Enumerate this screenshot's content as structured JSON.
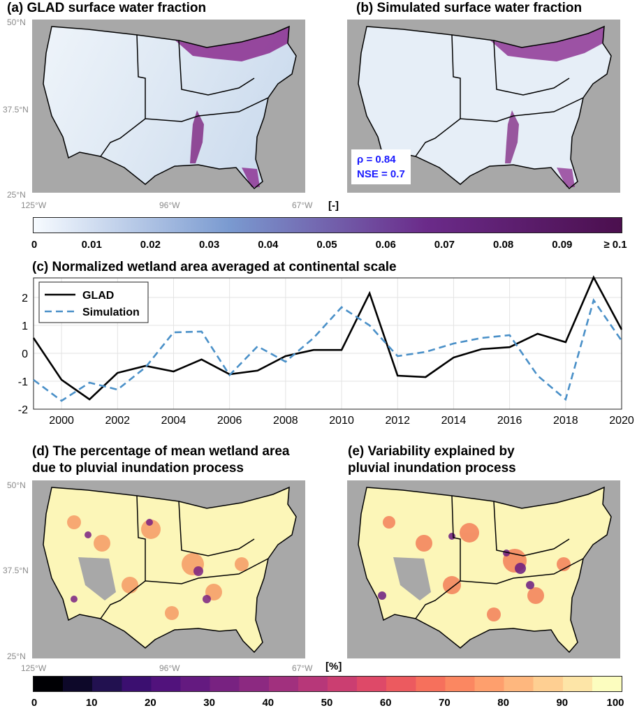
{
  "panels": {
    "a_title": "(a) GLAD surface water fraction",
    "b_title": "(b) Simulated surface water fraction",
    "c_title": "(c) Normalized wetland area averaged at continental scale",
    "d_title_line1": "(d) The percentage of mean wetland area",
    "d_title_line2": "due to pluvial inundation process",
    "e_title_line1": "(e) Variability explained by",
    "e_title_line2": "pluvial inundation process"
  },
  "map_axes": {
    "lat_top": "50°N",
    "lat_mid": "37.5°N",
    "lat_bottom": "25°N",
    "lon_left": "125°W",
    "lon_mid": "96°W",
    "lon_right": "67°W"
  },
  "stats": {
    "rho": "ρ = 0.84",
    "nse": "NSE = 0.7"
  },
  "colorbar_top": {
    "unit": "[-]",
    "labels": [
      "0",
      "0.01",
      "0.02",
      "0.03",
      "0.04",
      "0.05",
      "0.06",
      "0.07",
      "0.08",
      "0.09",
      "≥ 0.1"
    ],
    "colors": [
      "#f7fbff",
      "#7a9ad0",
      "#6b2b8a",
      "#4b0f4e"
    ]
  },
  "colorbar_bottom": {
    "unit": "[%]",
    "labels": [
      "0",
      "10",
      "20",
      "30",
      "40",
      "50",
      "60",
      "70",
      "80",
      "90",
      "100"
    ],
    "colors": [
      "#000004",
      "#0d0829",
      "#221150",
      "#3b0f70",
      "#51127c",
      "#641a80",
      "#782281",
      "#8c2981",
      "#a1307e",
      "#b73779",
      "#cb3e71",
      "#de4968",
      "#ec5a5f",
      "#f6705c",
      "#fb8761",
      "#fe9f6d",
      "#feb77e",
      "#fecf92",
      "#fde5a7",
      "#fcfdbf"
    ]
  },
  "map_colors": {
    "background": "#a8a8a8",
    "water_low": "#eaf1f8",
    "water_high": "#7a1a7a",
    "land_high": "#fcf6b8"
  },
  "chart_data": {
    "type": "line",
    "title": "(c) Normalized wetland area averaged at continental scale",
    "xlim": [
      1999,
      2020
    ],
    "ylim": [
      -2,
      2.7
    ],
    "xticks": [
      2000,
      2002,
      2004,
      2006,
      2008,
      2010,
      2012,
      2014,
      2016,
      2018,
      2020
    ],
    "yticks": [
      -2,
      -1,
      0,
      1,
      2
    ],
    "grid": true,
    "legend_position": "top-left",
    "x": [
      1999,
      2000,
      2001,
      2002,
      2003,
      2004,
      2005,
      2006,
      2007,
      2008,
      2009,
      2010,
      2011,
      2012,
      2013,
      2014,
      2015,
      2016,
      2017,
      2018,
      2019,
      2020
    ],
    "series": [
      {
        "name": "GLAD",
        "color": "#000000",
        "dash": "solid",
        "values": [
          0.55,
          -0.95,
          -1.65,
          -0.7,
          -0.45,
          -0.65,
          -0.22,
          -0.75,
          -0.62,
          -0.1,
          0.12,
          0.12,
          2.15,
          -0.8,
          -0.85,
          -0.15,
          0.15,
          0.22,
          0.7,
          0.4,
          2.72,
          0.85
        ]
      },
      {
        "name": "Simulation",
        "color": "#4a90c8",
        "dash": "dashed",
        "values": [
          -0.95,
          -1.7,
          -1.05,
          -1.3,
          -0.5,
          0.75,
          0.78,
          -0.78,
          0.25,
          -0.3,
          0.55,
          1.65,
          1.0,
          -0.1,
          0.05,
          0.35,
          0.55,
          0.65,
          -0.8,
          -1.65,
          1.9,
          0.45
        ]
      }
    ]
  }
}
